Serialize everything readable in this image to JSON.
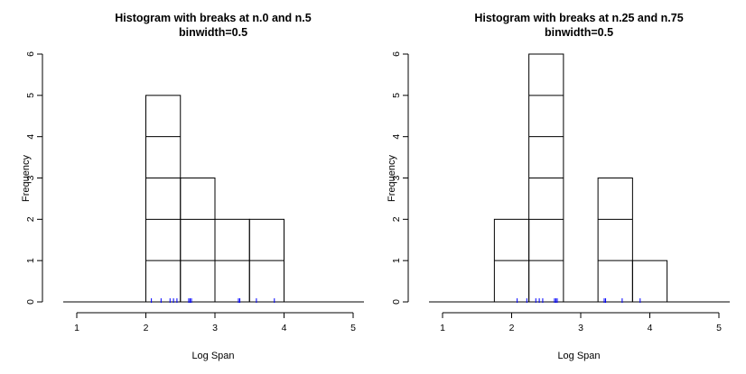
{
  "chart_data": [
    {
      "type": "bar",
      "title": "Histogram with breaks at n.0 and n.5",
      "subtitle": "binwidth=0.5",
      "xlabel": "Log Span",
      "ylabel": "Frequency",
      "xlim": [
        0.75,
        5.25
      ],
      "ylim": [
        0,
        6
      ],
      "xticks": [
        1,
        2,
        3,
        4,
        5
      ],
      "yticks": [
        0,
        1,
        2,
        3,
        4,
        5,
        6
      ],
      "bins": [
        {
          "start": 2.0,
          "end": 2.5,
          "count": 5
        },
        {
          "start": 2.5,
          "end": 3.0,
          "count": 3
        },
        {
          "start": 3.0,
          "end": 3.5,
          "count": 2
        },
        {
          "start": 3.5,
          "end": 4.0,
          "count": 2
        }
      ],
      "rug": [
        2.08,
        2.22,
        2.35,
        2.4,
        2.45,
        2.62,
        2.64,
        2.66,
        3.34,
        3.36,
        3.6,
        3.86
      ],
      "rug_color": "#0000ff"
    },
    {
      "type": "bar",
      "title": "Histogram with breaks at n.25 and n.75",
      "subtitle": "binwidth=0.5",
      "xlabel": "Log Span",
      "ylabel": "Frequency",
      "xlim": [
        0.75,
        5.25
      ],
      "ylim": [
        0,
        6
      ],
      "xticks": [
        1,
        2,
        3,
        4,
        5
      ],
      "yticks": [
        0,
        1,
        2,
        3,
        4,
        5,
        6
      ],
      "bins": [
        {
          "start": 1.75,
          "end": 2.25,
          "count": 2
        },
        {
          "start": 2.25,
          "end": 2.75,
          "count": 6
        },
        {
          "start": 3.25,
          "end": 3.75,
          "count": 3
        },
        {
          "start": 3.75,
          "end": 4.25,
          "count": 1
        }
      ],
      "rug": [
        2.08,
        2.22,
        2.35,
        2.4,
        2.45,
        2.62,
        2.64,
        2.66,
        3.34,
        3.36,
        3.6,
        3.86
      ],
      "rug_color": "#0000ff"
    }
  ]
}
